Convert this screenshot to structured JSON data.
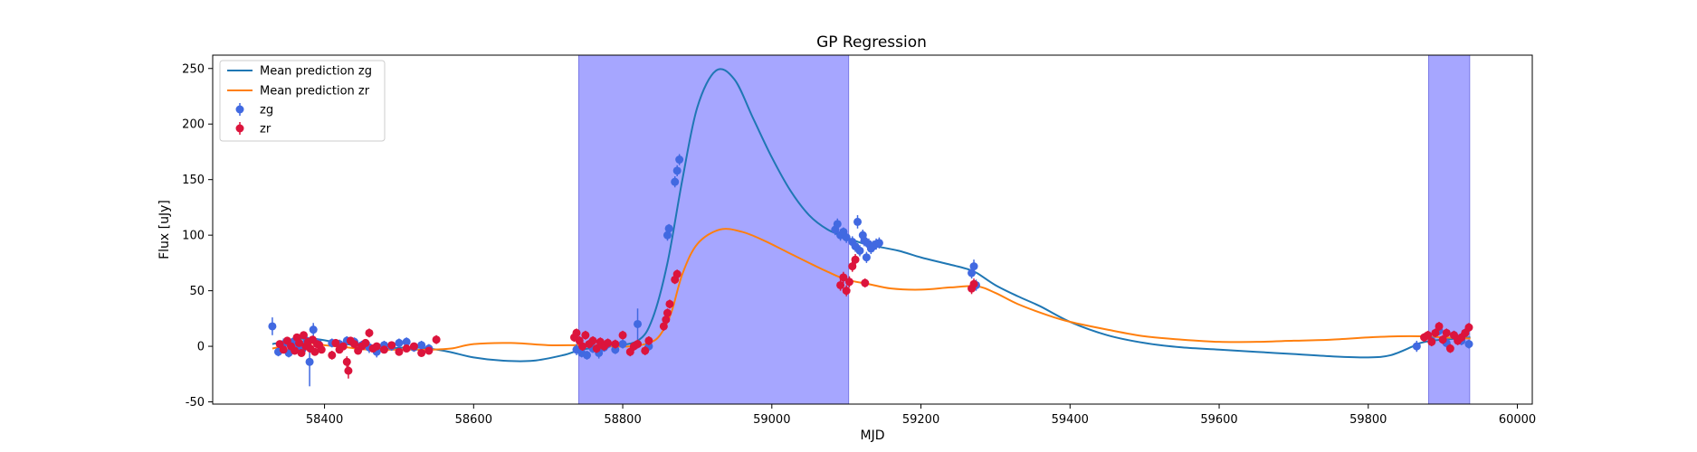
{
  "chart_data": {
    "type": "line",
    "title": "GP Regression",
    "xlabel": "MJD",
    "ylabel": "Flux [uJy]",
    "xlim": [
      58250,
      60020
    ],
    "ylim": [
      -52,
      262
    ],
    "xticks": [
      58400,
      58600,
      58800,
      59000,
      59200,
      59400,
      59600,
      59800,
      60000
    ],
    "yticks": [
      -50,
      0,
      50,
      100,
      150,
      200,
      250
    ],
    "grid": false,
    "legend_position": "upper-left",
    "shaded_regions": [
      {
        "x0": 58741,
        "x1": 59103,
        "color": "#a6a6ff"
      },
      {
        "x0": 59881,
        "x1": 59936,
        "color": "#a6a6ff"
      }
    ],
    "lines": [
      {
        "name": "Mean prediction zg",
        "color": "#1f77b4",
        "x": [
          58330,
          58360,
          58380,
          58395,
          58420,
          58450,
          58480,
          58520,
          58560,
          58600,
          58640,
          58680,
          58720,
          58745,
          58780,
          58820,
          58840,
          58860,
          58880,
          58900,
          58925,
          58950,
          58975,
          59000,
          59025,
          59050,
          59075,
          59100,
          59120,
          59140,
          59170,
          59200,
          59230,
          59260,
          59275,
          59300,
          59330,
          59360,
          59400,
          59450,
          59500,
          59550,
          59600,
          59650,
          59700,
          59750,
          59800,
          59830,
          59860,
          59870,
          59885,
          59900,
          59920,
          59937
        ],
        "y": [
          2,
          6,
          7,
          6,
          3,
          0,
          -2,
          -1,
          -4,
          -10,
          -13,
          -13,
          -8,
          -3,
          0,
          5,
          25,
          75,
          150,
          215,
          248,
          240,
          205,
          170,
          140,
          118,
          105,
          98,
          93,
          90,
          86,
          80,
          75,
          70,
          66,
          55,
          45,
          36,
          22,
          10,
          3,
          -1,
          -3,
          -5,
          -7,
          -9,
          -10,
          -8,
          0,
          3,
          5,
          6,
          7,
          8
        ]
      },
      {
        "name": "Mean prediction zr",
        "color": "#ff7f0e",
        "x": [
          58330,
          58360,
          58380,
          58400,
          58430,
          58460,
          58500,
          58540,
          58570,
          58600,
          58650,
          58700,
          58745,
          58780,
          58810,
          58835,
          58850,
          58865,
          58880,
          58900,
          58930,
          58960,
          58990,
          59020,
          59050,
          59075,
          59100,
          59130,
          59160,
          59200,
          59240,
          59275,
          59300,
          59330,
          59370,
          59400,
          59450,
          59500,
          59550,
          59600,
          59650,
          59700,
          59750,
          59800,
          59840,
          59870,
          59900,
          59937
        ],
        "y": [
          -2,
          2,
          3,
          1,
          -1,
          -3,
          -3,
          -3,
          -2,
          2,
          3,
          1,
          1,
          0,
          0,
          3,
          10,
          30,
          65,
          92,
          105,
          103,
          95,
          85,
          75,
          67,
          60,
          56,
          52,
          51,
          53,
          54,
          48,
          38,
          28,
          22,
          15,
          9,
          6,
          4,
          4,
          5,
          6,
          8,
          9,
          9,
          8,
          7
        ]
      }
    ],
    "series": [
      {
        "name": "zg",
        "color": "#4169e1",
        "marker": "circle-errorbar",
        "points": [
          [
            58330,
            18,
            8
          ],
          [
            58338,
            -5,
            4
          ],
          [
            58345,
            2,
            5
          ],
          [
            58352,
            -6,
            4
          ],
          [
            58358,
            4,
            4
          ],
          [
            58364,
            1,
            5
          ],
          [
            58370,
            -3,
            4
          ],
          [
            58376,
            5,
            6
          ],
          [
            58380,
            -14,
            22
          ],
          [
            58385,
            15,
            6
          ],
          [
            58391,
            3,
            4
          ],
          [
            58410,
            3,
            4
          ],
          [
            58420,
            2,
            4
          ],
          [
            58430,
            5,
            4
          ],
          [
            58440,
            4,
            4
          ],
          [
            58450,
            1,
            4
          ],
          [
            58460,
            -1,
            5
          ],
          [
            58470,
            -5,
            5
          ],
          [
            58480,
            1,
            4
          ],
          [
            58490,
            0,
            4
          ],
          [
            58500,
            3,
            4
          ],
          [
            58510,
            4,
            4
          ],
          [
            58520,
            -1,
            4
          ],
          [
            58530,
            1,
            4
          ],
          [
            58540,
            -2,
            4
          ],
          [
            58738,
            -3,
            5
          ],
          [
            58745,
            -6,
            4
          ],
          [
            58752,
            -8,
            4
          ],
          [
            58760,
            -2,
            4
          ],
          [
            58768,
            -6,
            5
          ],
          [
            58775,
            -1,
            4
          ],
          [
            58780,
            2,
            4
          ],
          [
            58790,
            -3,
            4
          ],
          [
            58800,
            2,
            4
          ],
          [
            58820,
            20,
            14
          ],
          [
            58835,
            0,
            4
          ],
          [
            58860,
            100,
            5
          ],
          [
            58862,
            106,
            4
          ],
          [
            58870,
            148,
            5
          ],
          [
            58873,
            158,
            5
          ],
          [
            58876,
            168,
            5
          ],
          [
            59085,
            105,
            5
          ],
          [
            59088,
            110,
            5
          ],
          [
            59092,
            100,
            5
          ],
          [
            59096,
            103,
            4
          ],
          [
            59100,
            98,
            5
          ],
          [
            59108,
            94,
            5
          ],
          [
            59112,
            90,
            5
          ],
          [
            59115,
            112,
            6
          ],
          [
            59118,
            86,
            5
          ],
          [
            59122,
            100,
            5
          ],
          [
            59124,
            95,
            5
          ],
          [
            59127,
            80,
            5
          ],
          [
            59130,
            92,
            5
          ],
          [
            59133,
            88,
            5
          ],
          [
            59136,
            90,
            5
          ],
          [
            59140,
            92,
            5
          ],
          [
            59144,
            93,
            5
          ],
          [
            59268,
            66,
            5
          ],
          [
            59271,
            72,
            6
          ],
          [
            59274,
            55,
            5
          ],
          [
            59865,
            0,
            5
          ],
          [
            59885,
            5,
            4
          ],
          [
            59895,
            14,
            4
          ],
          [
            59905,
            3,
            4
          ],
          [
            59915,
            10,
            4
          ],
          [
            59925,
            5,
            4
          ],
          [
            59930,
            12,
            4
          ],
          [
            59935,
            2,
            4
          ]
        ]
      },
      {
        "name": "zr",
        "color": "#dc143c",
        "marker": "circle-errorbar",
        "points": [
          [
            58340,
            2,
            3
          ],
          [
            58345,
            -3,
            3
          ],
          [
            58350,
            5,
            3
          ],
          [
            58355,
            0,
            3
          ],
          [
            58360,
            -4,
            3
          ],
          [
            58363,
            8,
            3
          ],
          [
            58366,
            3,
            3
          ],
          [
            58369,
            -6,
            3
          ],
          [
            58372,
            10,
            3
          ],
          [
            58375,
            0,
            3
          ],
          [
            58378,
            4,
            3
          ],
          [
            58381,
            -2,
            3
          ],
          [
            58384,
            6,
            3
          ],
          [
            58387,
            -5,
            3
          ],
          [
            58390,
            2,
            3
          ],
          [
            58393,
            1,
            3
          ],
          [
            58396,
            -3,
            3
          ],
          [
            58410,
            -8,
            4
          ],
          [
            58415,
            3,
            3
          ],
          [
            58420,
            -3,
            3
          ],
          [
            58425,
            0,
            3
          ],
          [
            58430,
            -14,
            5
          ],
          [
            58432,
            -22,
            7
          ],
          [
            58435,
            5,
            3
          ],
          [
            58440,
            2,
            3
          ],
          [
            58445,
            -4,
            3
          ],
          [
            58450,
            0,
            3
          ],
          [
            58455,
            3,
            3
          ],
          [
            58460,
            12,
            4
          ],
          [
            58465,
            -2,
            3
          ],
          [
            58470,
            0,
            3
          ],
          [
            58480,
            -3,
            3
          ],
          [
            58490,
            1,
            3
          ],
          [
            58500,
            -5,
            3
          ],
          [
            58510,
            -2,
            3
          ],
          [
            58520,
            0,
            3
          ],
          [
            58530,
            -6,
            3
          ],
          [
            58540,
            -4,
            3
          ],
          [
            58550,
            6,
            4
          ],
          [
            58735,
            8,
            4
          ],
          [
            58738,
            12,
            4
          ],
          [
            58742,
            5,
            4
          ],
          [
            58746,
            0,
            4
          ],
          [
            58750,
            10,
            4
          ],
          [
            58755,
            2,
            4
          ],
          [
            58760,
            5,
            4
          ],
          [
            58765,
            -2,
            4
          ],
          [
            58770,
            4,
            4
          ],
          [
            58775,
            0,
            4
          ],
          [
            58780,
            3,
            4
          ],
          [
            58790,
            2,
            4
          ],
          [
            58800,
            10,
            4
          ],
          [
            58810,
            -5,
            4
          ],
          [
            58815,
            0,
            4
          ],
          [
            58820,
            2,
            4
          ],
          [
            58830,
            -4,
            4
          ],
          [
            58835,
            5,
            4
          ],
          [
            58855,
            18,
            4
          ],
          [
            58858,
            24,
            4
          ],
          [
            58860,
            30,
            4
          ],
          [
            58863,
            38,
            4
          ],
          [
            58870,
            60,
            4
          ],
          [
            58873,
            65,
            4
          ],
          [
            59092,
            55,
            5
          ],
          [
            59096,
            62,
            5
          ],
          [
            59100,
            50,
            5
          ],
          [
            59104,
            58,
            5
          ],
          [
            59108,
            72,
            5
          ],
          [
            59112,
            78,
            5
          ],
          [
            59125,
            57,
            4
          ],
          [
            59268,
            52,
            5
          ],
          [
            59271,
            56,
            5
          ],
          [
            59875,
            8,
            4
          ],
          [
            59880,
            10,
            4
          ],
          [
            59885,
            4,
            4
          ],
          [
            59890,
            12,
            4
          ],
          [
            59895,
            18,
            4
          ],
          [
            59900,
            6,
            4
          ],
          [
            59905,
            12,
            4
          ],
          [
            59910,
            -2,
            4
          ],
          [
            59915,
            10,
            4
          ],
          [
            59920,
            5,
            4
          ],
          [
            59925,
            8,
            4
          ],
          [
            59930,
            12,
            4
          ],
          [
            59935,
            17,
            4
          ]
        ]
      }
    ]
  }
}
